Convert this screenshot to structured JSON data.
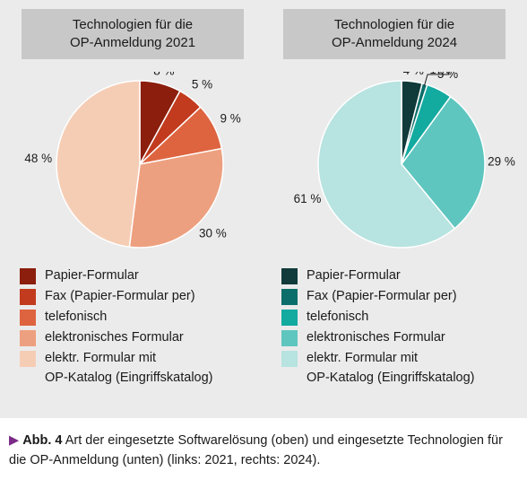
{
  "chart_data": [
    {
      "type": "pie",
      "title_lines": [
        "Technologien für die",
        "OP-Anmeldung 2021"
      ],
      "slices": [
        {
          "label": "Papier-Formular",
          "value": 8,
          "value_label": "8 %",
          "color": "#8b1e0c"
        },
        {
          "label": "Fax (Papier-Formular per)",
          "value": 5,
          "value_label": "5 %",
          "color": "#c23b1e"
        },
        {
          "label": "telefonisch",
          "value": 9,
          "value_label": "9 %",
          "color": "#de6440"
        },
        {
          "label": "elektronisches Formular",
          "value": 30,
          "value_label": "30 %",
          "color": "#eda07f"
        },
        {
          "label": "elektr. Formular mit OP-Katalog (Eingriffskatalog)",
          "value": 48,
          "value_label": "48 %",
          "color": "#f5cdb5"
        }
      ]
    },
    {
      "type": "pie",
      "title_lines": [
        "Technologien für die",
        "OP-Anmeldung 2024"
      ],
      "slices": [
        {
          "label": "Papier-Formular",
          "value": 4,
          "value_label": "4 %",
          "color": "#113a3a"
        },
        {
          "label": "Fax (Papier-Formular per)",
          "value": 1,
          "value_label": "1 %",
          "color": "#0c6e6a"
        },
        {
          "label": "telefonisch",
          "value": 5,
          "value_label": "5 %",
          "color": "#13aaa0"
        },
        {
          "label": "elektronisches Formular",
          "value": 29,
          "value_label": "29 %",
          "color": "#5ec6bf"
        },
        {
          "label": "elektr. Formular mit OP-Katalog (Eingriffskatalog)",
          "value": 61,
          "value_label": "61 %",
          "color": "#b7e3e0"
        }
      ]
    }
  ],
  "legend_lines": [
    [
      "Papier-Formular"
    ],
    [
      "Fax (Papier-Formular per)"
    ],
    [
      "telefonisch"
    ],
    [
      "elektronisches Formular"
    ],
    [
      "elektr. Formular mit",
      "OP-Katalog (Eingriffskatalog)"
    ]
  ],
  "caption": {
    "marker": "▶",
    "label": "Abb. 4",
    "text": "Art der eingesetzte Softwarelösung (oben) und eingesetzte Technologien für die OP-Anmeldung (unten) (links: 2021, rechts: 2024)."
  }
}
